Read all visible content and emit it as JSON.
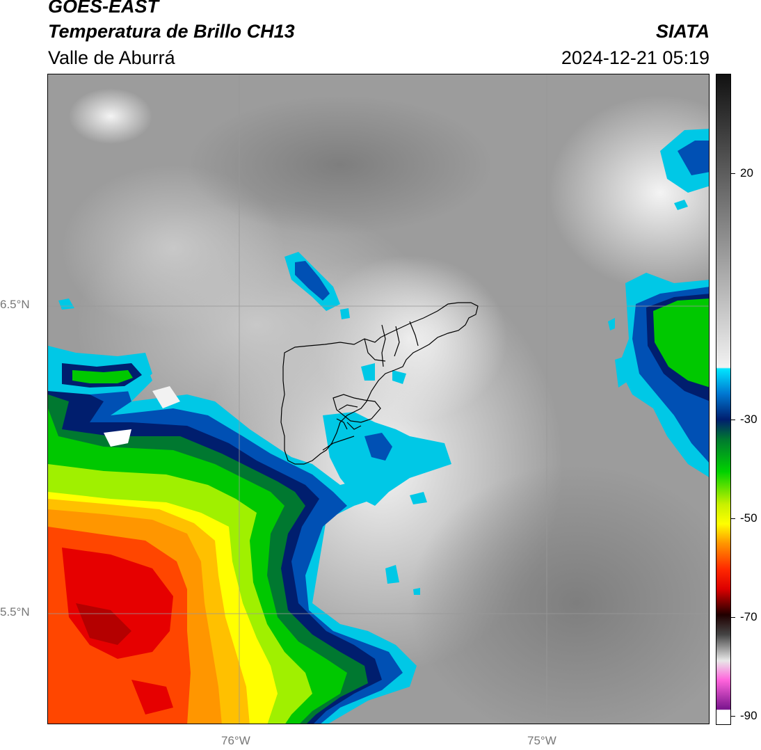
{
  "header": {
    "satellite": "GOES-EAST",
    "product": "Temperatura de Brillo CH13",
    "region": "Valle de Aburrá",
    "organization": "SIATA",
    "timestamp": "2024-12-21 05:19"
  },
  "axes": {
    "lat_labels": [
      "6.5°N",
      "5.5°N"
    ],
    "lon_labels": [
      "76°W",
      "75°W"
    ]
  },
  "colorbar": {
    "ticks": [
      "20",
      "-30",
      "-50",
      "-70",
      "-90"
    ],
    "range": [
      -90,
      30
    ],
    "colors": {
      "warm_gray_dark": "#1a1a1a",
      "warm_gray_light": "#f0f0f0",
      "cyan": "#00c8e6",
      "blue": "#0050b4",
      "navy": "#001e6e",
      "dark_green": "#007830",
      "green": "#00c800",
      "lime": "#a0f000",
      "yellow": "#ffff00",
      "orange": "#ff9600",
      "red": "#e60000",
      "dark_red": "#500000",
      "pink": "#e650c8",
      "purple": "#78148c"
    }
  }
}
